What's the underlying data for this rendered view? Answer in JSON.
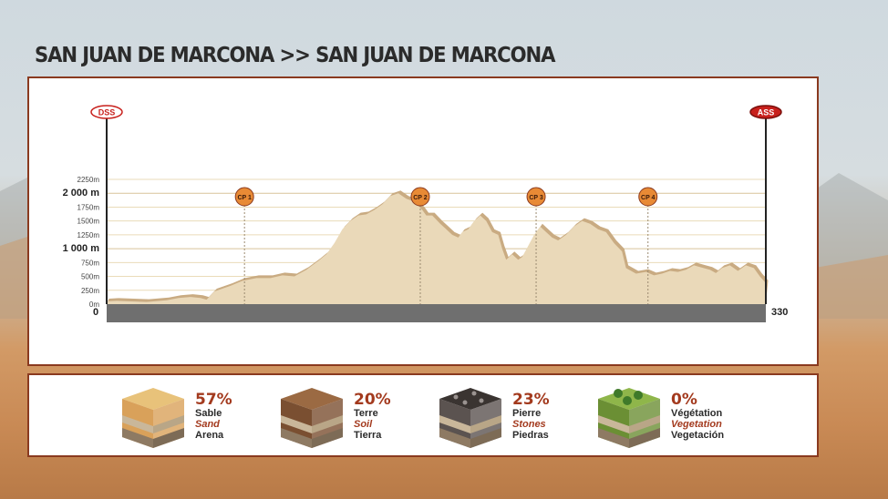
{
  "title": "SAN JUAN DE MARCONA >> SAN JUAN DE MARCONA",
  "colors": {
    "frame": "#8a3a1f",
    "profile_fill": "#ead9b9",
    "profile_shadow": "#c9ab82",
    "ground": "#6f6f6f",
    "badge_orange": "#e88a35",
    "ass_red": "#c8201c"
  },
  "chart_data": {
    "type": "area",
    "title": "SAN JUAN DE MARCONA >> SAN JUAN DE MARCONA",
    "x_range": [
      0,
      330
    ],
    "y_range": [
      0,
      2250
    ],
    "x_start_label": "0",
    "x_end_label": "330",
    "y_ticks": [
      {
        "label": "0m",
        "value": 0,
        "major": false
      },
      {
        "label": "250m",
        "value": 250,
        "major": false
      },
      {
        "label": "500m",
        "value": 500,
        "major": false
      },
      {
        "label": "750m",
        "value": 750,
        "major": false
      },
      {
        "label": "1 000 m",
        "value": 1000,
        "major": true
      },
      {
        "label": "1250m",
        "value": 1250,
        "major": false
      },
      {
        "label": "1500m",
        "value": 1500,
        "major": false
      },
      {
        "label": "1750m",
        "value": 1750,
        "major": false
      },
      {
        "label": "2 000 m",
        "value": 2000,
        "major": true
      },
      {
        "label": "2250m",
        "value": 2250,
        "major": false
      }
    ],
    "profile": [
      [
        0,
        50
      ],
      [
        5,
        60
      ],
      [
        20,
        40
      ],
      [
        30,
        70
      ],
      [
        36,
        110
      ],
      [
        42,
        130
      ],
      [
        47,
        110
      ],
      [
        50,
        80
      ],
      [
        54,
        230
      ],
      [
        62,
        330
      ],
      [
        68,
        420
      ],
      [
        75,
        470
      ],
      [
        82,
        470
      ],
      [
        88,
        520
      ],
      [
        94,
        500
      ],
      [
        100,
        620
      ],
      [
        106,
        780
      ],
      [
        110,
        900
      ],
      [
        114,
        1100
      ],
      [
        118,
        1350
      ],
      [
        122,
        1500
      ],
      [
        126,
        1600
      ],
      [
        130,
        1620
      ],
      [
        134,
        1700
      ],
      [
        138,
        1800
      ],
      [
        142,
        1950
      ],
      [
        146,
        2000
      ],
      [
        150,
        1900
      ],
      [
        154,
        1850
      ],
      [
        158,
        1700
      ],
      [
        160,
        1600
      ],
      [
        163,
        1600
      ],
      [
        167,
        1450
      ],
      [
        170,
        1350
      ],
      [
        173,
        1250
      ],
      [
        176,
        1200
      ],
      [
        178,
        1300
      ],
      [
        181,
        1350
      ],
      [
        184,
        1500
      ],
      [
        187,
        1600
      ],
      [
        190,
        1500
      ],
      [
        193,
        1300
      ],
      [
        196,
        1250
      ],
      [
        198,
        1000
      ],
      [
        200,
        800
      ],
      [
        203,
        900
      ],
      [
        206,
        800
      ],
      [
        208,
        850
      ],
      [
        211,
        1050
      ],
      [
        214,
        1250
      ],
      [
        217,
        1400
      ],
      [
        220,
        1300
      ],
      [
        223,
        1200
      ],
      [
        226,
        1150
      ],
      [
        230,
        1250
      ],
      [
        234,
        1400
      ],
      [
        238,
        1500
      ],
      [
        242,
        1450
      ],
      [
        246,
        1350
      ],
      [
        250,
        1300
      ],
      [
        254,
        1100
      ],
      [
        258,
        950
      ],
      [
        260,
        650
      ],
      [
        265,
        550
      ],
      [
        270,
        580
      ],
      [
        274,
        520
      ],
      [
        278,
        550
      ],
      [
        282,
        600
      ],
      [
        286,
        580
      ],
      [
        290,
        620
      ],
      [
        294,
        700
      ],
      [
        298,
        660
      ],
      [
        302,
        620
      ],
      [
        305,
        560
      ],
      [
        308,
        650
      ],
      [
        312,
        700
      ],
      [
        316,
        600
      ],
      [
        320,
        700
      ],
      [
        324,
        650
      ],
      [
        327,
        500
      ],
      [
        330,
        380
      ]
    ],
    "markers": [
      {
        "label": "DSS",
        "x": 0,
        "style": "start"
      },
      {
        "label": "CP 1",
        "x": 69
      },
      {
        "label": "CP 2",
        "x": 157
      },
      {
        "label": "CP 3",
        "x": 215
      },
      {
        "label": "CP 4",
        "x": 271
      },
      {
        "label": "ASS",
        "x": 330,
        "style": "end"
      }
    ]
  },
  "terrain": [
    {
      "pct": "57%",
      "fr": "Sable",
      "en": "Sand",
      "es": "Arena",
      "icon": "sand-block-icon",
      "top": "#e8c27a",
      "mid": "#d9a15a"
    },
    {
      "pct": "20%",
      "fr": "Terre",
      "en": "Soil",
      "es": "Tierra",
      "icon": "soil-block-icon",
      "top": "#9b6a43",
      "mid": "#7a4f31"
    },
    {
      "pct": "23%",
      "fr": "Pierre",
      "en": "Stones",
      "es": "Piedras",
      "icon": "stones-block-icon",
      "top": "#3a3431",
      "mid": "#5b5350"
    },
    {
      "pct": "0%",
      "fr": "Végétation",
      "en": "Vegetation",
      "es": "Vegetación",
      "icon": "vegetation-block-icon",
      "top": "#8fb64a",
      "mid": "#6b8f34"
    }
  ]
}
